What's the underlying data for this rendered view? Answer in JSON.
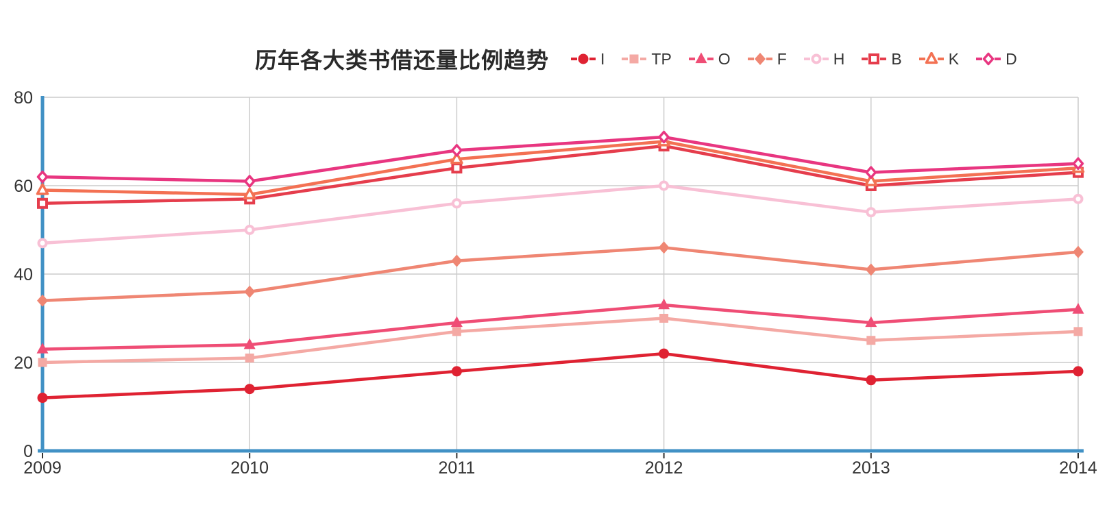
{
  "header": {
    "title": "历年各大类书借还量比例趋势"
  },
  "chart_data": {
    "type": "line",
    "title": "历年各大类书借还量比例趋势",
    "x_labels": [
      "2009",
      "2010",
      "2011",
      "2012",
      "2013",
      "2014"
    ],
    "y_ticks": [
      0,
      20,
      40,
      60,
      80
    ],
    "ylim": [
      0,
      80
    ],
    "grid": true,
    "legend_position": "top-right",
    "series": [
      {
        "name": "I",
        "marker": "circle",
        "fill": "solid",
        "color": "#df2232",
        "values": [
          12,
          14,
          18,
          22,
          16,
          18
        ]
      },
      {
        "name": "TP",
        "marker": "square",
        "fill": "solid",
        "color": "#f4a9a4",
        "values": [
          20,
          21,
          27,
          30,
          25,
          27
        ]
      },
      {
        "name": "O",
        "marker": "triangle",
        "fill": "solid",
        "color": "#ef4d75",
        "values": [
          23,
          24,
          29,
          33,
          29,
          32
        ]
      },
      {
        "name": "F",
        "marker": "diamond",
        "fill": "solid",
        "color": "#ef8673",
        "values": [
          34,
          36,
          43,
          46,
          41,
          45
        ]
      },
      {
        "name": "H",
        "marker": "circle",
        "fill": "open",
        "color": "#f8c0d5",
        "values": [
          47,
          50,
          56,
          60,
          54,
          57
        ]
      },
      {
        "name": "B",
        "marker": "square",
        "fill": "open",
        "color": "#e53d4c",
        "values": [
          56,
          57,
          64,
          69,
          60,
          63
        ]
      },
      {
        "name": "K",
        "marker": "triangle",
        "fill": "open",
        "color": "#f37153",
        "values": [
          59,
          58,
          66,
          70,
          61,
          64
        ]
      },
      {
        "name": "D",
        "marker": "diamond",
        "fill": "open",
        "color": "#e83680",
        "values": [
          62,
          61,
          68,
          71,
          63,
          65
        ]
      }
    ]
  },
  "style": {
    "axis_color": "#4191c5",
    "grid_color": "#cccccc",
    "tick_label_color": "#333333",
    "title_color": "#2a2a2a",
    "legend_label_color": "#333333",
    "background": "#ffffff"
  }
}
